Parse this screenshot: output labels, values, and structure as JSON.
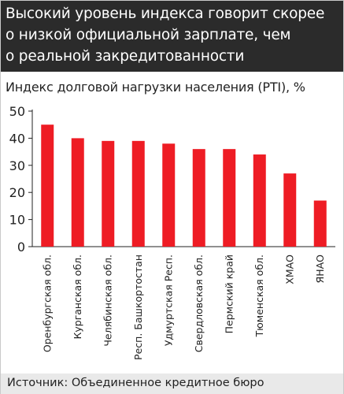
{
  "title_lines": [
    "Высокий уровень индекса говорит скорее",
    "о низкой официальной зарплате, чем",
    "о реальной закредитованности"
  ],
  "source": "Источник: Объединенное кредитное бюро",
  "colors": {
    "header_bg": "#2b2b2b",
    "bar": "#ee1c24",
    "source_bg": "#e9e9e9"
  },
  "chart_data": {
    "type": "bar",
    "title": "Индекс долговой нагрузки населения (PTI), %",
    "categories": [
      "Оренбургская обл.",
      "Курганская обл.",
      "Челябинская обл.",
      "Респ. Башкортостан",
      "Удмуртская Респ.",
      "Свердловская обл.",
      "Пермский край",
      "Тюменская обл.",
      "ХМАО",
      "ЯНАО"
    ],
    "values": [
      45,
      40,
      39,
      39,
      38,
      36,
      36,
      34,
      27,
      17
    ],
    "ylim": [
      0,
      50
    ],
    "yticks": [
      0,
      10,
      20,
      30,
      40,
      50
    ],
    "xlabel": "",
    "ylabel": "",
    "grid": false,
    "legend": "none"
  }
}
